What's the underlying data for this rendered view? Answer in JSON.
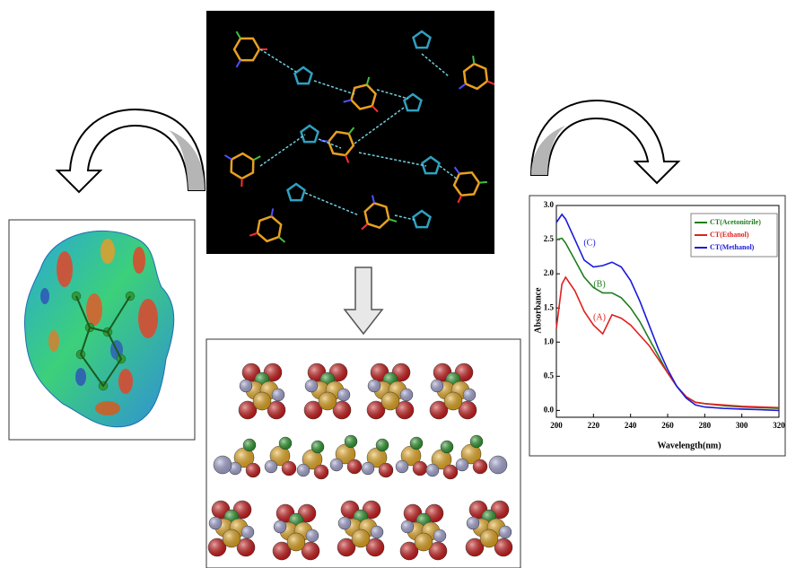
{
  "chart_data": {
    "type": "line",
    "x_label": "Wavelength(nm)",
    "y_label": "Absorbance",
    "x": [
      200,
      203,
      205,
      210,
      215,
      220,
      225,
      230,
      235,
      240,
      245,
      250,
      255,
      260,
      265,
      270,
      275,
      280,
      290,
      300,
      310,
      320
    ],
    "series": [
      {
        "name": "CT(Acetonitrile)",
        "color": "#1e7d1e",
        "values": [
          2.5,
          2.52,
          2.45,
          2.2,
          1.95,
          1.8,
          1.72,
          1.72,
          1.65,
          1.5,
          1.3,
          1.05,
          0.8,
          0.55,
          0.35,
          0.2,
          0.12,
          0.1,
          0.07,
          0.05,
          0.04,
          0.03
        ]
      },
      {
        "name": "CT(Ethanol)",
        "color": "#e0201e",
        "values": [
          1.2,
          1.85,
          1.95,
          1.75,
          1.45,
          1.25,
          1.12,
          1.4,
          1.35,
          1.25,
          1.1,
          0.95,
          0.75,
          0.55,
          0.35,
          0.2,
          0.12,
          0.1,
          0.08,
          0.06,
          0.05,
          0.04
        ]
      },
      {
        "name": "CT(Methanol)",
        "color": "#1a1adc",
        "values": [
          2.75,
          2.87,
          2.8,
          2.5,
          2.2,
          2.1,
          2.12,
          2.17,
          2.1,
          1.9,
          1.6,
          1.25,
          0.9,
          0.6,
          0.35,
          0.18,
          0.08,
          0.05,
          0.03,
          0.02,
          0.01,
          0.0
        ]
      }
    ],
    "annotations": [
      "(A)",
      "(B)",
      "(C)"
    ],
    "xlim": [
      200,
      320
    ],
    "xticks": [
      200,
      220,
      240,
      260,
      280,
      300,
      320
    ],
    "ylim": [
      -0.1,
      3.0
    ],
    "yticks": [
      {
        "value": 0,
        "label": "0.0"
      },
      {
        "value": 0.5,
        "label": "0.5"
      },
      {
        "value": 1,
        "label": "1.0"
      },
      {
        "value": 1.5,
        "label": "1.5"
      },
      {
        "value": 2,
        "label": "2.0"
      },
      {
        "value": 2.5,
        "label": "2.5"
      },
      {
        "value": 3,
        "label": "3.0"
      }
    ],
    "legend": "upper right"
  }
}
